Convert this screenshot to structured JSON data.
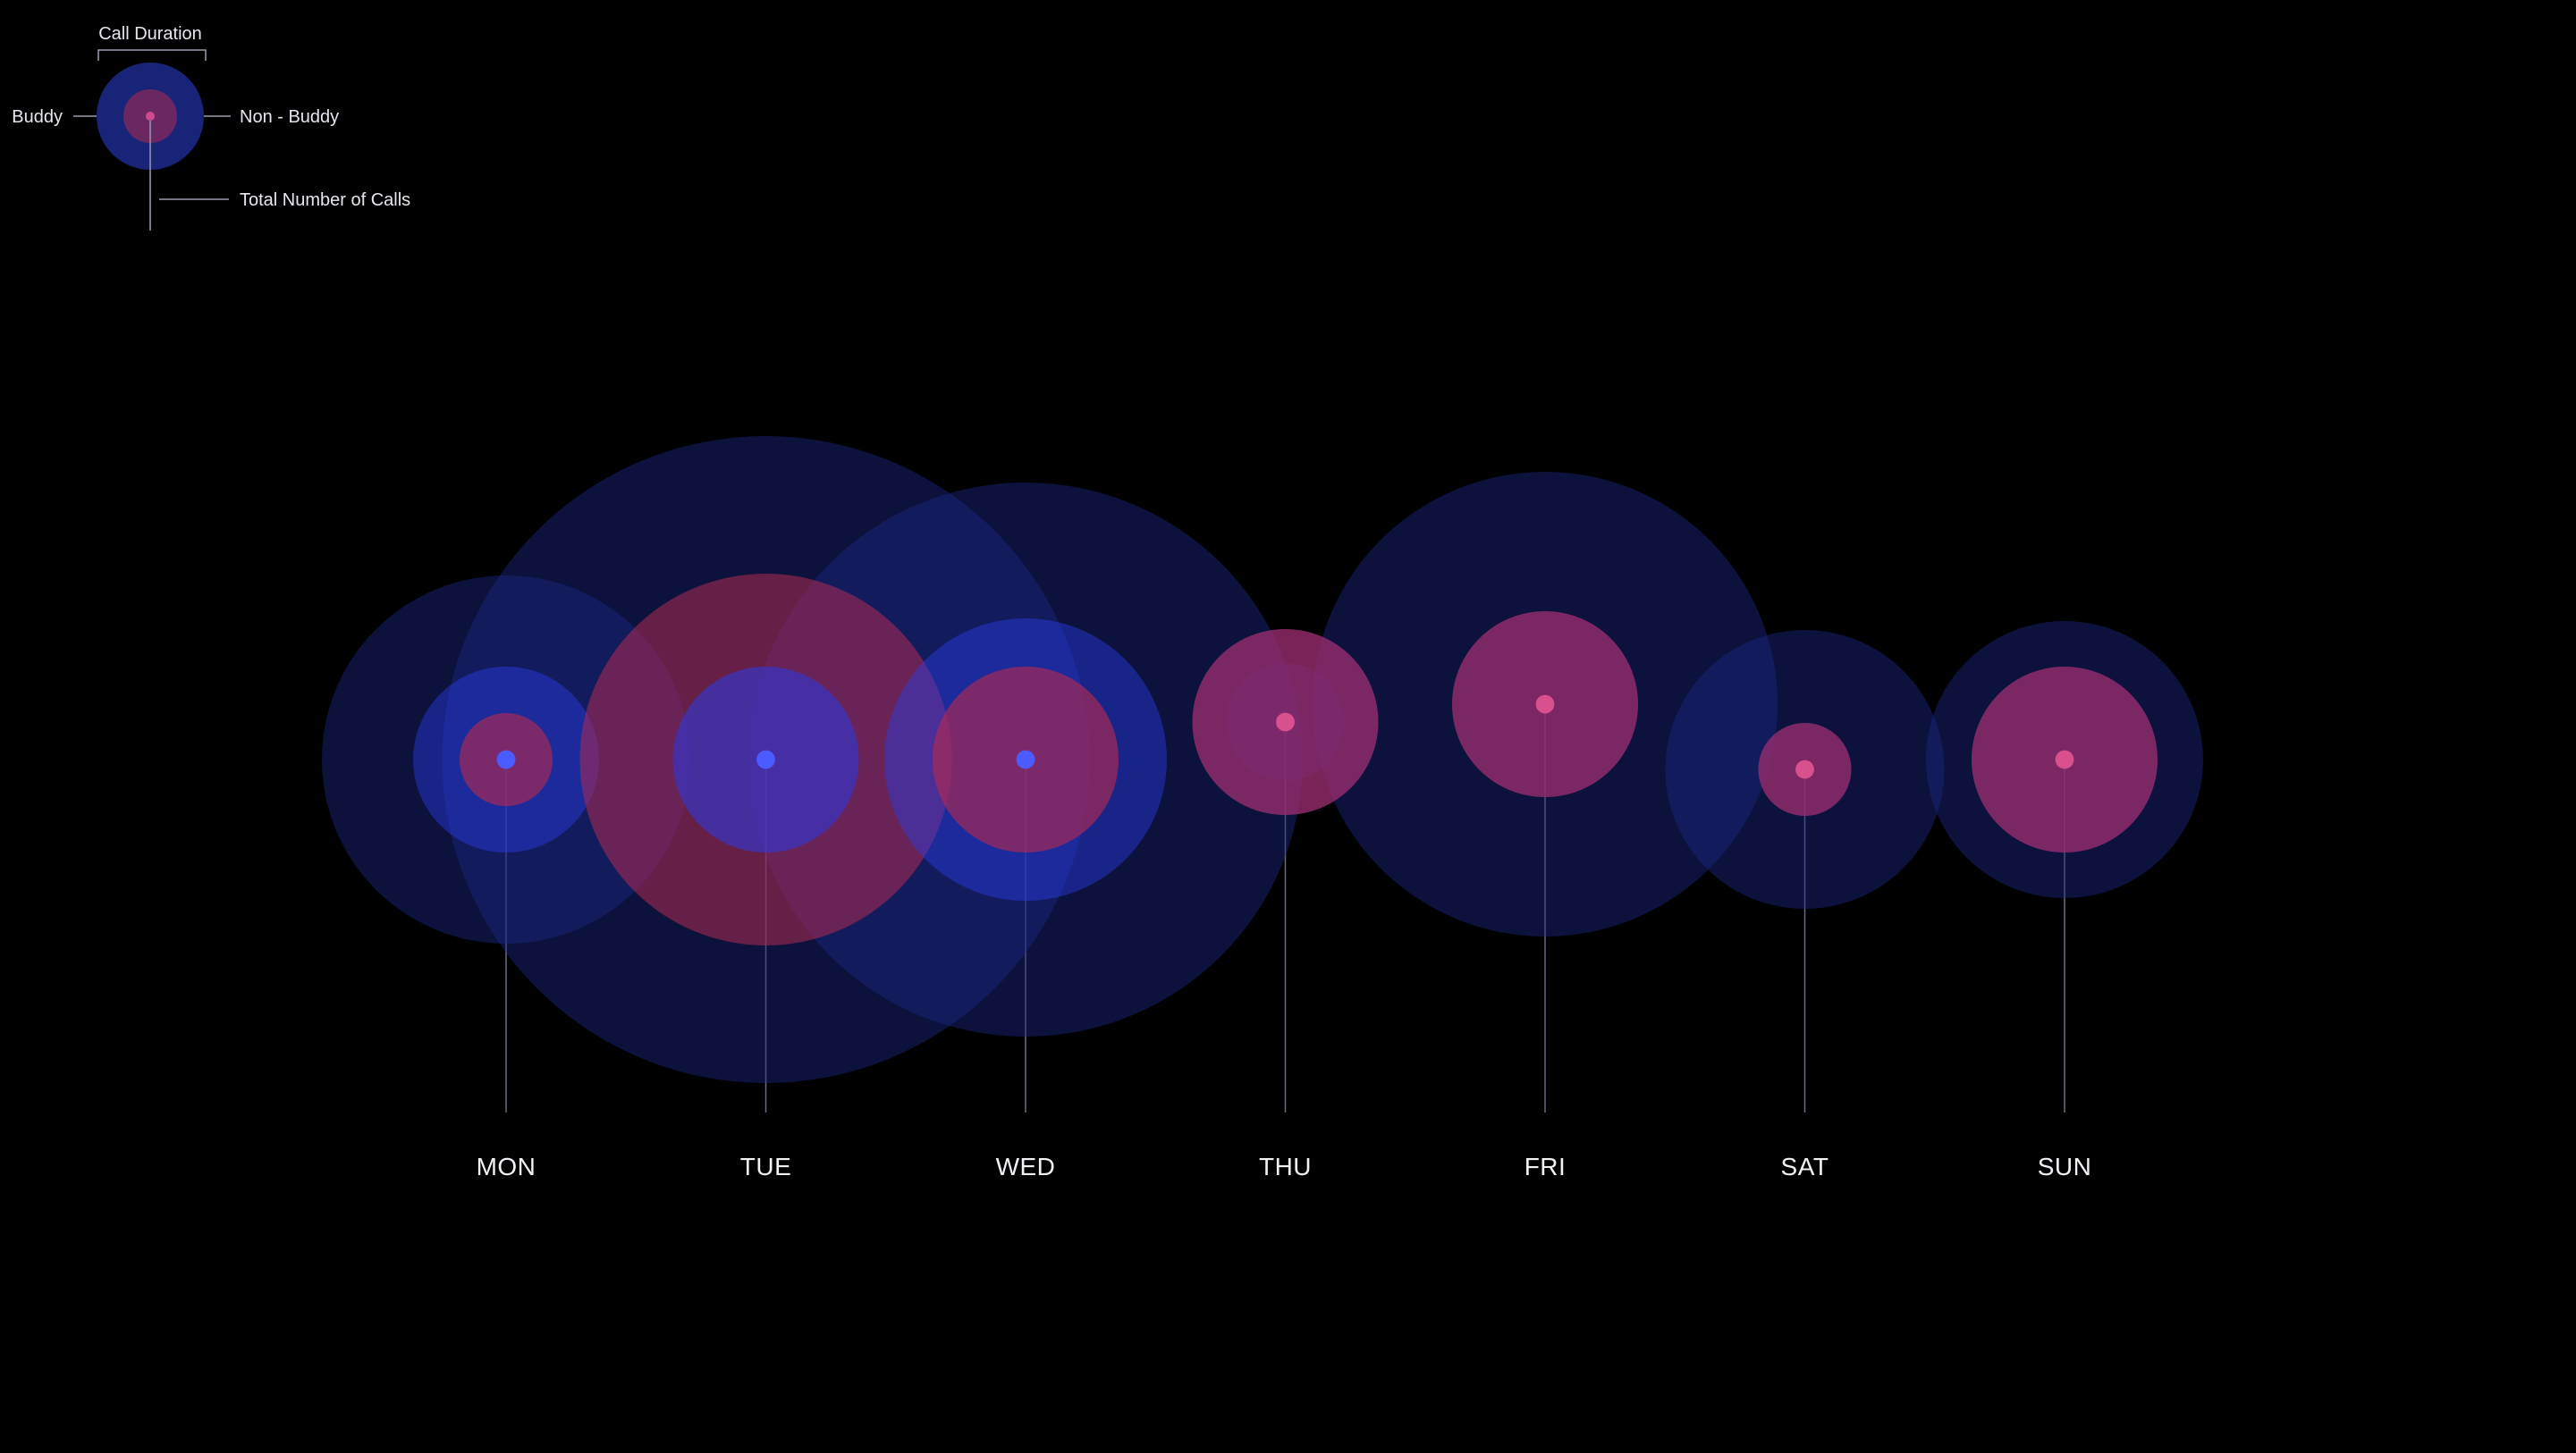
{
  "legend": {
    "call_duration_label": "Call Duration",
    "buddy_label": "Buddy",
    "non_buddy_label": "Non - Buddy",
    "total_calls_label": "Total Number of Calls"
  },
  "colors": {
    "background": "#000000",
    "call_duration_ring": "#1c2a8c",
    "buddy_ring": "#2a3be6",
    "non_buddy_ring": "#b02a52",
    "dot": "#4a5cff",
    "leader_line": "#6a6a80"
  },
  "chart_data": {
    "type": "bubble-glyph",
    "title": "",
    "categories": [
      "MON",
      "TUE",
      "WED",
      "THU",
      "FRI",
      "SAT",
      "SUN"
    ],
    "series": [
      {
        "name": "Call Duration",
        "values": [
          206,
          362,
          310,
          66,
          260,
          156,
          155
        ]
      },
      {
        "name": "Buddy",
        "values": [
          104,
          104,
          158,
          104,
          104,
          52,
          104
        ]
      },
      {
        "name": "Non - Buddy",
        "values": [
          52,
          208,
          104,
          104,
          104,
          52,
          104
        ]
      },
      {
        "name": "Total Number of Calls",
        "values": [
          4,
          4,
          4,
          4,
          4,
          4,
          4
        ]
      }
    ],
    "level_y": [
      0,
      0,
      0,
      42,
      62,
      -11,
      0
    ],
    "dominant": [
      "buddy",
      "non_buddy",
      "buddy",
      "non_buddy",
      "non_buddy",
      "non_buddy",
      "non_buddy"
    ],
    "grid": false,
    "legend_position": "top-left"
  }
}
